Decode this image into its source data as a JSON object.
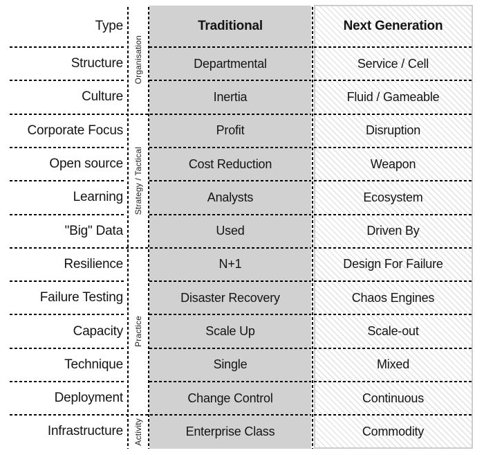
{
  "header_row": {
    "label": "Type",
    "traditional": "Traditional",
    "next_generation": "Next Generation"
  },
  "rows": [
    {
      "label": "Structure",
      "traditional": "Departmental",
      "next_generation": "Service / Cell"
    },
    {
      "label": "Culture",
      "traditional": "Inertia",
      "next_generation": "Fluid / Gameable"
    },
    {
      "label": "Corporate Focus",
      "traditional": "Profit",
      "next_generation": "Disruption"
    },
    {
      "label": "Open source",
      "traditional": "Cost Reduction",
      "next_generation": "Weapon"
    },
    {
      "label": "Learning",
      "traditional": "Analysts",
      "next_generation": "Ecosystem"
    },
    {
      "label": "\"Big\" Data",
      "traditional": "Used",
      "next_generation": "Driven By"
    },
    {
      "label": "Resilience",
      "traditional": "N+1",
      "next_generation": "Design For Failure"
    },
    {
      "label": "Failure Testing",
      "traditional": "Disaster Recovery",
      "next_generation": "Chaos Engines"
    },
    {
      "label": "Capacity",
      "traditional": "Scale Up",
      "next_generation": "Scale-out"
    },
    {
      "label": "Technique",
      "traditional": "Single",
      "next_generation": "Mixed"
    },
    {
      "label": "Deployment",
      "traditional": "Change Control",
      "next_generation": "Continuous"
    },
    {
      "label": "Infrastructure",
      "traditional": "Enterprise Class",
      "next_generation": "Commodity"
    }
  ],
  "categories": [
    {
      "label": "Organisation",
      "rows": [
        "Type",
        "Structure",
        "Culture"
      ]
    },
    {
      "label": "Strategy / Tactical",
      "rows": [
        "Corporate Focus",
        "Open source",
        "Learning",
        "\"Big\" Data"
      ]
    },
    {
      "label": "Practice",
      "rows": [
        "Resilience",
        "Failure Testing",
        "Capacity",
        "Technique",
        "Deployment"
      ]
    },
    {
      "label": "Activity",
      "rows": [
        "Infrastructure"
      ]
    }
  ],
  "colors": {
    "traditional_column_background": "#d1d1d1",
    "next_generation_hatch": "#e9e9e9",
    "next_generation_border": "#cccccc",
    "line_color": "#000000",
    "text_color": "#141414"
  }
}
